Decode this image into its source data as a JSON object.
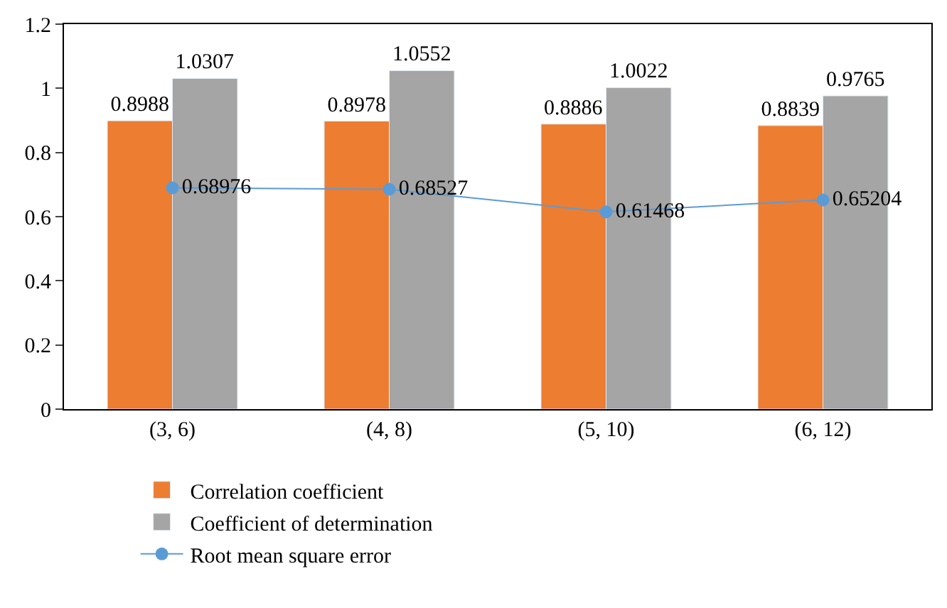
{
  "chart_data": {
    "type": "bar",
    "categories": [
      "(3, 6)",
      "(4, 8)",
      "(5, 10)",
      "(6, 12)"
    ],
    "series": [
      {
        "name": "Correlation coefficient",
        "color": "#ed7d31",
        "values": [
          0.8988,
          0.8978,
          0.8886,
          0.8839
        ]
      },
      {
        "name": "Coefficient of determination",
        "color": "#a5a5a5",
        "values": [
          1.0307,
          1.0552,
          1.0022,
          0.9765
        ]
      },
      {
        "name": "Root mean square error",
        "color": "#5b9bd5",
        "type": "line",
        "marker": "circle",
        "values": [
          0.68976,
          0.68527,
          0.61468,
          0.65204
        ]
      }
    ],
    "ylim": [
      0,
      1.2
    ],
    "yticks": [
      0,
      0.2,
      0.4,
      0.6,
      0.8,
      1,
      1.2
    ],
    "data_labels": true,
    "legend": "bottom"
  }
}
